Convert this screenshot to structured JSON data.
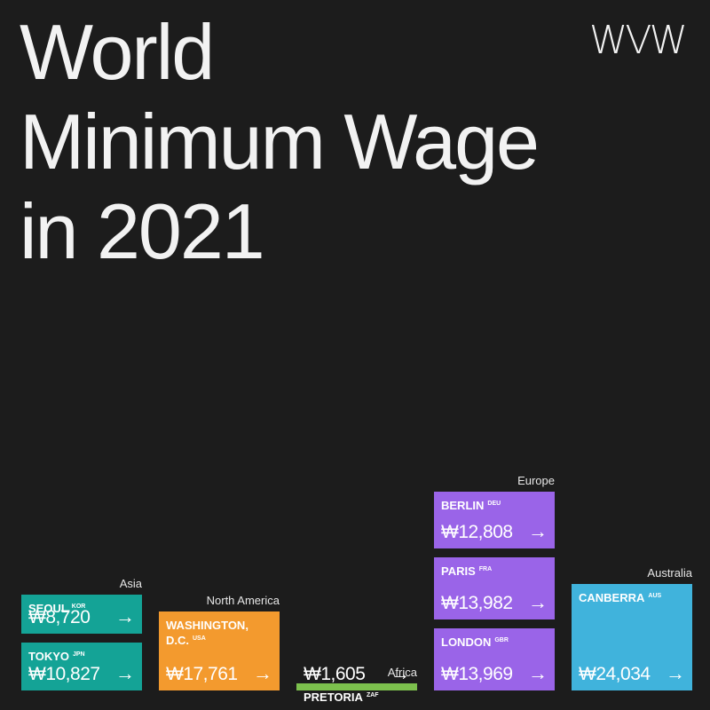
{
  "logo": "WVW",
  "title_lines": [
    "World",
    "Minimum Wage",
    "in 2021"
  ],
  "colors": {
    "background": "#1c1c1c",
    "Asia": "#14a396",
    "North America": "#f39a2e",
    "Africa": "#7cc04d",
    "Europe": "#9a64e8",
    "Australia": "#40b3dc"
  },
  "chart_data": {
    "type": "bar",
    "title": "World Minimum Wage in 2021",
    "currency_symbol": "₩",
    "regions": [
      {
        "name": "Asia",
        "cities": [
          {
            "city": "SEOUL",
            "code": "KOR",
            "value": 8720,
            "label": "₩8,720"
          },
          {
            "city": "TOKYO",
            "code": "JPN",
            "value": 10827,
            "label": "₩10,827"
          }
        ]
      },
      {
        "name": "North America",
        "cities": [
          {
            "city": "WASHINGTON, D.C.",
            "code": "USA",
            "value": 17761,
            "label": "₩17,761"
          }
        ]
      },
      {
        "name": "Africa",
        "cities": [
          {
            "city": "PRETORIA",
            "code": "ZAF",
            "value": 1605,
            "label": "₩1,605"
          }
        ]
      },
      {
        "name": "Europe",
        "cities": [
          {
            "city": "BERLIN",
            "code": "DEU",
            "value": 12808,
            "label": "₩12,808"
          },
          {
            "city": "PARIS",
            "code": "FRA",
            "value": 13982,
            "label": "₩13,982"
          },
          {
            "city": "LONDON",
            "code": "GBR",
            "value": 13969,
            "label": "₩13,969"
          }
        ]
      },
      {
        "name": "Australia",
        "cities": [
          {
            "city": "CANBERRA",
            "code": "AUS",
            "value": 24034,
            "label": "₩24,034"
          }
        ]
      }
    ]
  }
}
